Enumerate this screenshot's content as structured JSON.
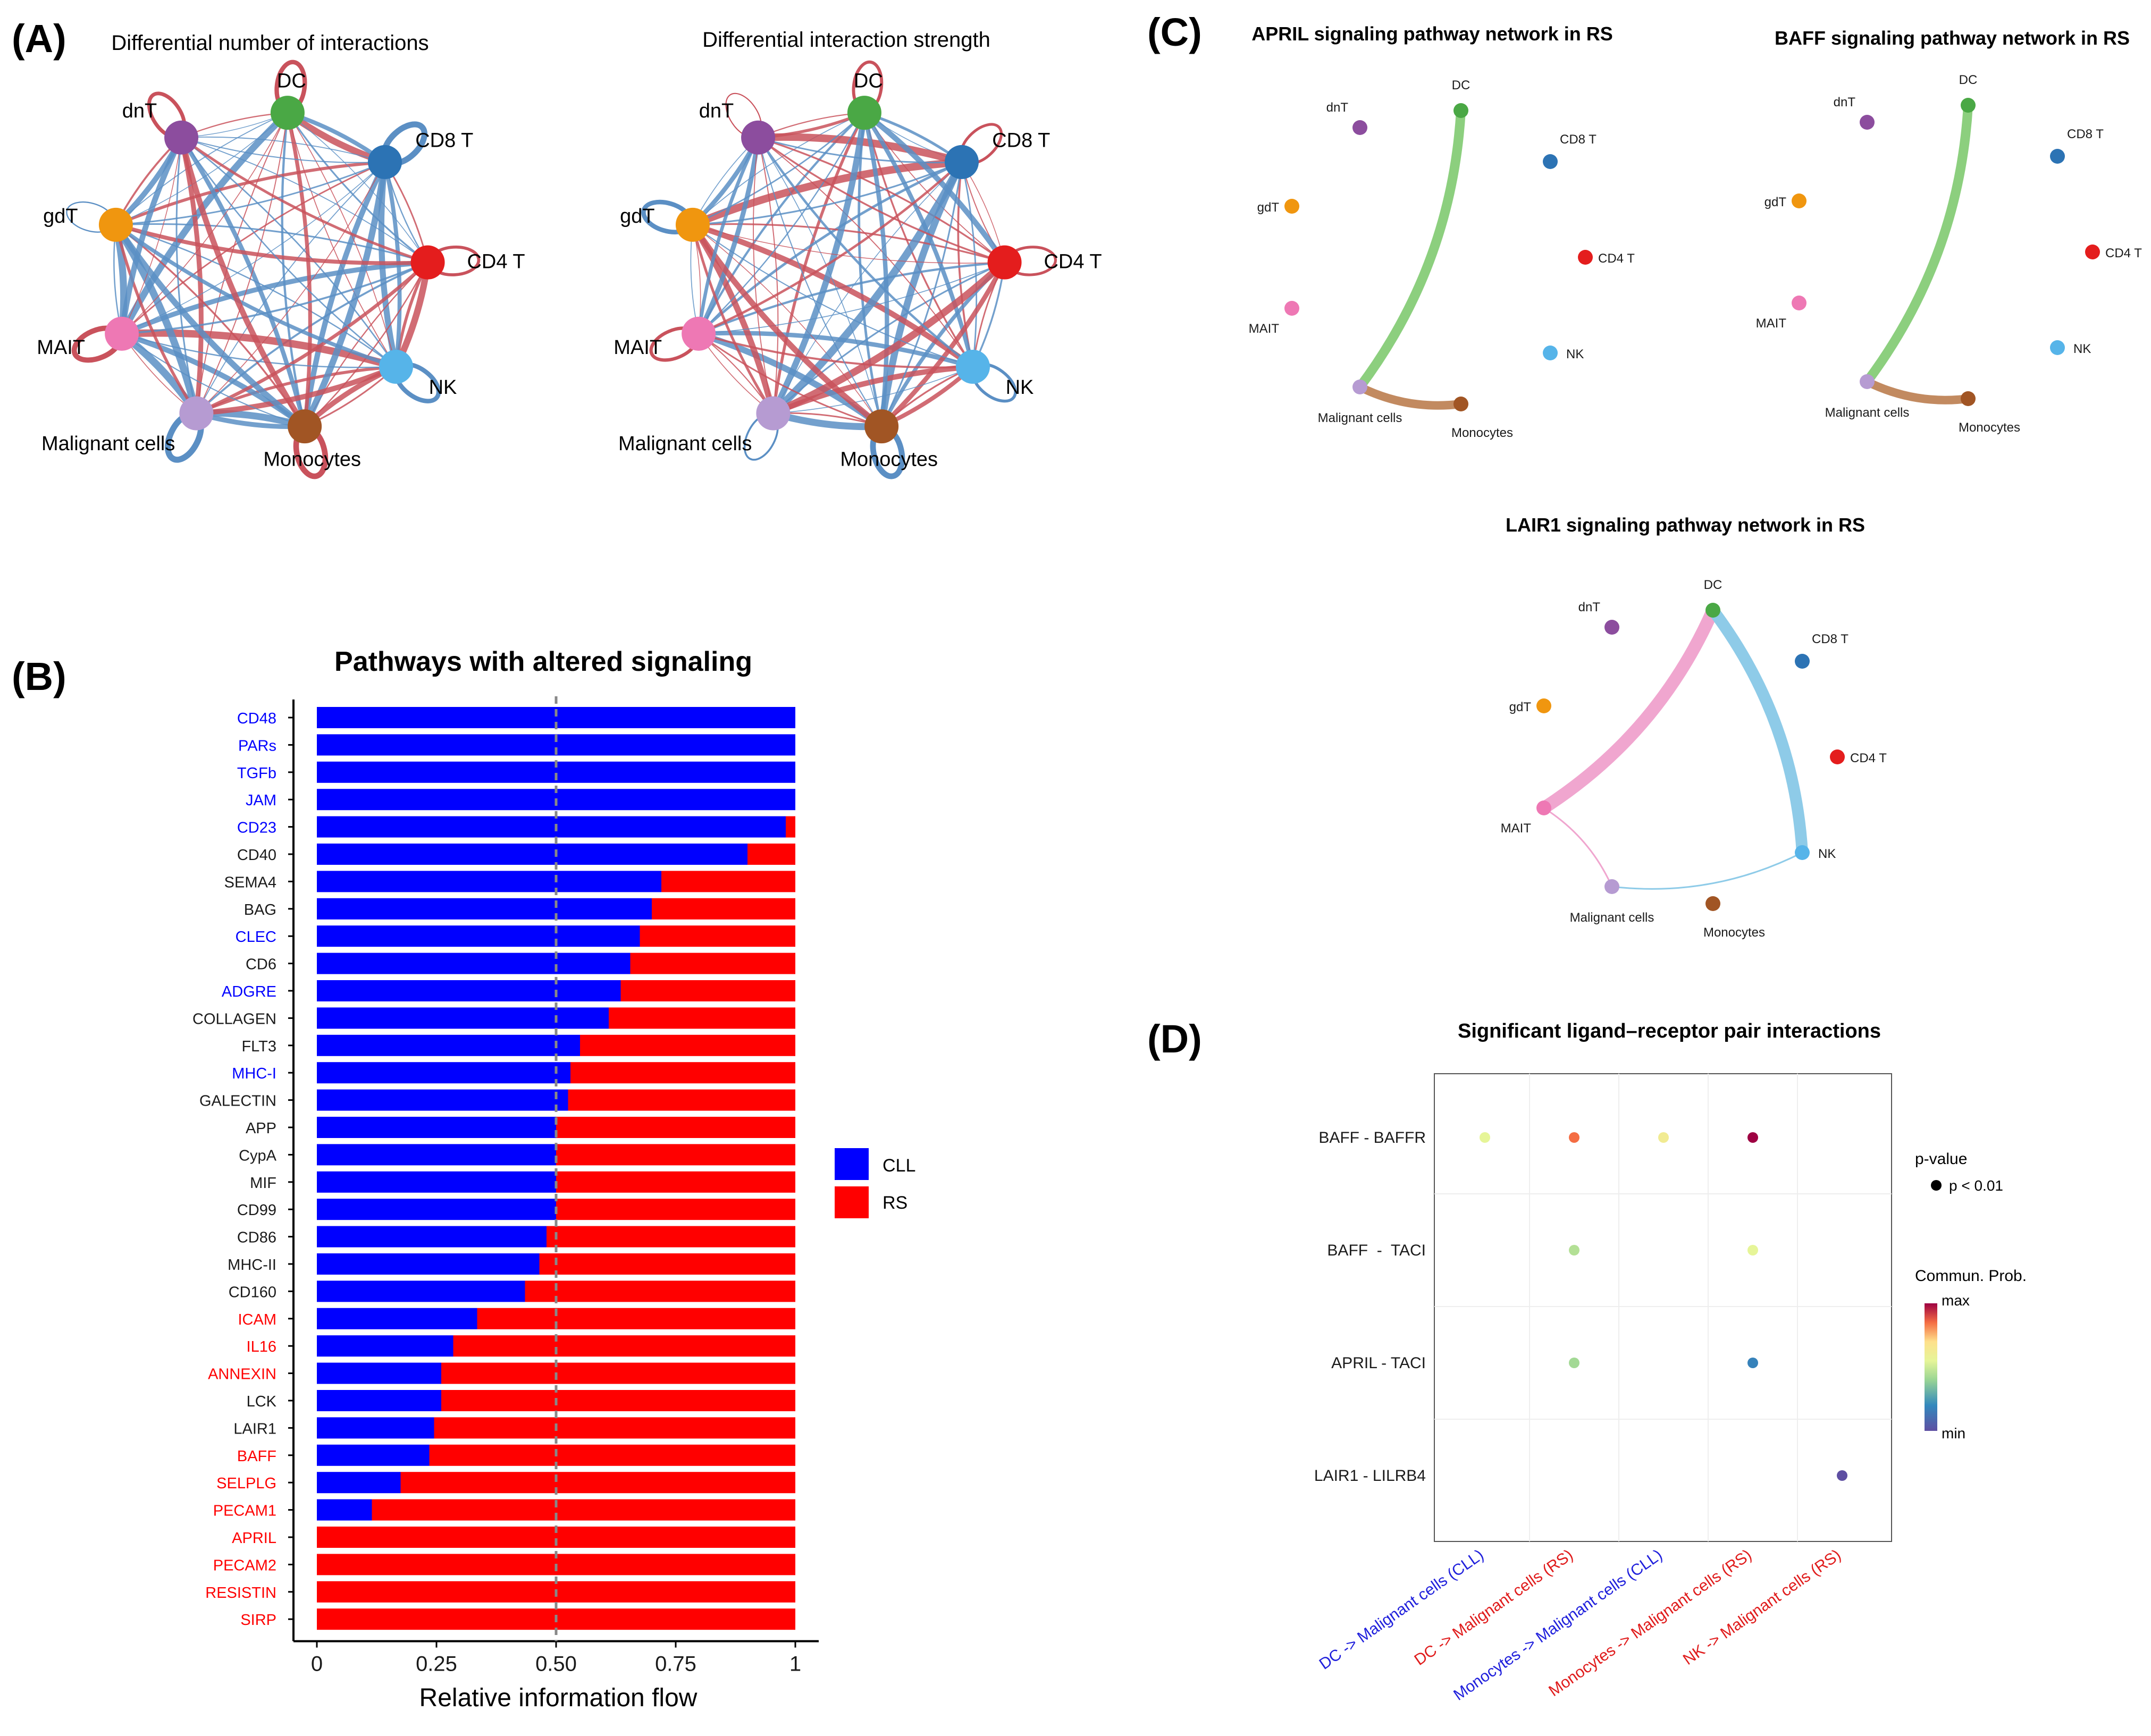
{
  "colors": {
    "CLL": "#0000ff",
    "RS": "#ff0000",
    "up": "#c9525c",
    "down": "#5b8fc4",
    "DC": "#4aa845",
    "dnT": "#8c4d9e",
    "CD8 T": "#2c73b4",
    "gdT": "#f0960f",
    "CD4 T": "#e41d1d",
    "MAIT": "#ee78b4",
    "NK": "#56b4e9",
    "Malignant cells": "#b69bd2",
    "Monocytes": "#a15524"
  },
  "panels": {
    "A": "(A)",
    "B": "(B)",
    "C": "(C)",
    "D": "(D)"
  },
  "chart_data": [
    {
      "type": "network",
      "panel": "A",
      "title": "Differential number of interactions",
      "nodes": [
        "DC",
        "CD8 T",
        "CD4 T",
        "NK",
        "Monocytes",
        "Malignant cells",
        "MAIT",
        "gdT",
        "dnT"
      ],
      "edge_colors": [
        "up",
        "down"
      ]
    },
    {
      "type": "network",
      "panel": "A",
      "title": "Differential interaction strength",
      "nodes": [
        "DC",
        "CD8 T",
        "CD4 T",
        "NK",
        "Monocytes",
        "Malignant cells",
        "MAIT",
        "gdT",
        "dnT"
      ],
      "edge_colors": [
        "up",
        "down"
      ]
    },
    {
      "type": "bar",
      "panel": "B",
      "stacked": true,
      "horizontal": true,
      "title": "Pathways with altered signaling",
      "xlabel": "Relative information flow",
      "xlim": [
        0,
        1
      ],
      "xticks": [
        "0",
        "0.25",
        "0.50",
        "0.75",
        "1"
      ],
      "reference_line": 0.5,
      "categories": [
        "CD48",
        "PARs",
        "TGFb",
        "JAM",
        "CD23",
        "CD40",
        "SEMA4",
        "BAG",
        "CLEC",
        "CD6",
        "ADGRE",
        "COLLAGEN",
        "FLT3",
        "MHC-I",
        "GALECTIN",
        "APP",
        "CypA",
        "MIF",
        "CD99",
        "CD86",
        "MHC-II",
        "CD160",
        "ICAM",
        "IL16",
        "ANNEXIN",
        "LCK",
        "LAIR1",
        "BAFF",
        "SELPLG",
        "PECAM1",
        "APRIL",
        "PECAM2",
        "RESISTIN",
        "SIRP"
      ],
      "label_colors": [
        "CLL",
        "CLL",
        "CLL",
        "CLL",
        "CLL",
        "none",
        "none",
        "none",
        "CLL",
        "none",
        "CLL",
        "none",
        "none",
        "CLL",
        "none",
        "none",
        "none",
        "none",
        "none",
        "none",
        "none",
        "none",
        "RS",
        "RS",
        "RS",
        "none",
        "none",
        "RS",
        "RS",
        "RS",
        "RS",
        "RS",
        "RS",
        "RS"
      ],
      "series": [
        {
          "name": "CLL",
          "values": [
            1.0,
            1.0,
            1.0,
            1.0,
            0.98,
            0.9,
            0.72,
            0.7,
            0.675,
            0.655,
            0.635,
            0.61,
            0.55,
            0.53,
            0.525,
            0.5,
            0.5,
            0.5,
            0.5,
            0.48,
            0.465,
            0.435,
            0.335,
            0.285,
            0.26,
            0.26,
            0.245,
            0.235,
            0.175,
            0.115,
            0,
            0,
            0,
            0
          ]
        },
        {
          "name": "RS",
          "values": [
            0,
            0,
            0,
            0,
            0.02,
            0.1,
            0.28,
            0.3,
            0.325,
            0.345,
            0.365,
            0.39,
            0.45,
            0.47,
            0.475,
            0.5,
            0.5,
            0.5,
            0.5,
            0.52,
            0.535,
            0.565,
            0.665,
            0.715,
            0.74,
            0.74,
            0.755,
            0.765,
            0.825,
            0.885,
            1,
            1,
            1,
            1
          ]
        }
      ],
      "legend": [
        "CLL",
        "RS"
      ]
    },
    {
      "type": "network",
      "panel": "C",
      "title": "APRIL signaling pathway network in RS",
      "nodes": [
        "DC",
        "dnT",
        "CD8 T",
        "gdT",
        "CD4 T",
        "MAIT",
        "NK",
        "Malignant cells",
        "Monocytes"
      ],
      "edges": [
        {
          "source": "DC",
          "target": "Malignant cells"
        },
        {
          "source": "Monocytes",
          "target": "Malignant cells"
        }
      ]
    },
    {
      "type": "network",
      "panel": "C",
      "title": "BAFF signaling pathway network in RS",
      "nodes": [
        "DC",
        "dnT",
        "CD8 T",
        "gdT",
        "CD4 T",
        "MAIT",
        "NK",
        "Malignant cells",
        "Monocytes"
      ],
      "edges": [
        {
          "source": "DC",
          "target": "Malignant cells"
        },
        {
          "source": "Monocytes",
          "target": "Malignant cells"
        }
      ]
    },
    {
      "type": "network",
      "panel": "C",
      "title": "LAIR1 signaling pathway network in RS",
      "nodes": [
        "DC",
        "dnT",
        "CD8 T",
        "gdT",
        "CD4 T",
        "MAIT",
        "NK",
        "Malignant cells",
        "Monocytes"
      ],
      "edges": [
        {
          "source": "DC",
          "target": "MAIT"
        },
        {
          "source": "DC",
          "target": "NK"
        },
        {
          "source": "MAIT",
          "target": "Malignant cells"
        },
        {
          "source": "NK",
          "target": "Malignant cells"
        }
      ]
    },
    {
      "type": "scatter",
      "panel": "D",
      "title": "Significant ligand–receptor pair interactions",
      "x_categories": [
        "DC -> Malignant cells (CLL)",
        "DC -> Malignant cells (RS)",
        "Monocytes -> Malignant cells (CLL)",
        "Monocytes -> Malignant cells (RS)",
        "NK -> Malignant cells (RS)"
      ],
      "x_label_colors": [
        "CLL",
        "RS",
        "CLL",
        "RS",
        "RS"
      ],
      "y_categories": [
        "BAFF - BAFFR",
        "BAFF  -  TACI",
        "APRIL - TACI",
        "LAIR1 - LILRB4"
      ],
      "points": [
        {
          "x": "DC -> Malignant cells (CLL)",
          "y": "BAFF - BAFFR",
          "prob": 0.55
        },
        {
          "x": "DC -> Malignant cells (RS)",
          "y": "BAFF - BAFFR",
          "prob": 0.85
        },
        {
          "x": "Monocytes -> Malignant cells (CLL)",
          "y": "BAFF - BAFFR",
          "prob": 0.62
        },
        {
          "x": "Monocytes -> Malignant cells (RS)",
          "y": "BAFF - BAFFR",
          "prob": 1.0
        },
        {
          "x": "DC -> Malignant cells (RS)",
          "y": "BAFF  -  TACI",
          "prob": 0.45
        },
        {
          "x": "Monocytes -> Malignant cells (RS)",
          "y": "BAFF  -  TACI",
          "prob": 0.55
        },
        {
          "x": "DC -> Malignant cells (RS)",
          "y": "APRIL - TACI",
          "prob": 0.42
        },
        {
          "x": "Monocytes -> Malignant cells (RS)",
          "y": "APRIL - TACI",
          "prob": 0.18
        },
        {
          "x": "NK -> Malignant cells (RS)",
          "y": "LAIR1 - LILRB4",
          "prob": 0.0
        }
      ],
      "legend_pvalue_title": "p-value",
      "legend_pvalue_item": "p < 0.01",
      "legend_prob_title": "Commun. Prob.",
      "legend_prob_max": "max",
      "legend_prob_min": "min"
    }
  ]
}
